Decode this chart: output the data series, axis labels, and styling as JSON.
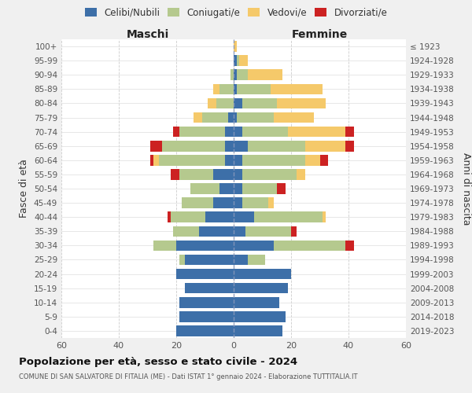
{
  "age_groups": [
    "0-4",
    "5-9",
    "10-14",
    "15-19",
    "20-24",
    "25-29",
    "30-34",
    "35-39",
    "40-44",
    "45-49",
    "50-54",
    "55-59",
    "60-64",
    "65-69",
    "70-74",
    "75-79",
    "80-84",
    "85-89",
    "90-94",
    "95-99",
    "100+"
  ],
  "birth_years": [
    "2019-2023",
    "2014-2018",
    "2009-2013",
    "2004-2008",
    "1999-2003",
    "1994-1998",
    "1989-1993",
    "1984-1988",
    "1979-1983",
    "1974-1978",
    "1969-1973",
    "1964-1968",
    "1959-1963",
    "1954-1958",
    "1949-1953",
    "1944-1948",
    "1939-1943",
    "1934-1938",
    "1929-1933",
    "1924-1928",
    "≤ 1923"
  ],
  "colors": {
    "celibi": "#3d6fa8",
    "coniugati": "#b5c98e",
    "vedovi": "#f5c96a",
    "divorziati": "#cc2222"
  },
  "maschi": {
    "celibi": [
      20,
      19,
      19,
      17,
      20,
      17,
      20,
      12,
      10,
      7,
      5,
      7,
      3,
      3,
      3,
      2,
      0,
      0,
      0,
      0,
      0
    ],
    "coniugati": [
      0,
      0,
      0,
      0,
      0,
      2,
      8,
      9,
      12,
      11,
      10,
      12,
      23,
      22,
      16,
      9,
      6,
      5,
      1,
      0,
      0
    ],
    "vedovi": [
      0,
      0,
      0,
      0,
      0,
      0,
      0,
      0,
      0,
      0,
      0,
      0,
      2,
      0,
      0,
      3,
      3,
      2,
      0,
      0,
      0
    ],
    "divorziati": [
      0,
      0,
      0,
      0,
      0,
      0,
      0,
      0,
      1,
      0,
      0,
      3,
      1,
      4,
      2,
      0,
      0,
      0,
      0,
      0,
      0
    ]
  },
  "femmine": {
    "celibi": [
      17,
      18,
      16,
      19,
      20,
      5,
      14,
      4,
      7,
      3,
      3,
      3,
      3,
      5,
      3,
      1,
      3,
      1,
      1,
      1,
      0
    ],
    "coniugati": [
      0,
      0,
      0,
      0,
      0,
      6,
      25,
      16,
      24,
      9,
      12,
      19,
      22,
      20,
      16,
      13,
      12,
      12,
      4,
      1,
      0
    ],
    "vedovi": [
      0,
      0,
      0,
      0,
      0,
      0,
      0,
      0,
      1,
      2,
      0,
      3,
      5,
      14,
      20,
      14,
      17,
      18,
      12,
      3,
      1
    ],
    "divorziati": [
      0,
      0,
      0,
      0,
      0,
      0,
      3,
      2,
      0,
      0,
      3,
      0,
      3,
      3,
      3,
      0,
      0,
      0,
      0,
      0,
      0
    ]
  },
  "xlim": 60,
  "title": "Popolazione per età, sesso e stato civile - 2024",
  "subtitle": "COMUNE DI SAN SALVATORE DI FITALIA (ME) - Dati ISTAT 1° gennaio 2024 - Elaborazione TUTTITALIA.IT",
  "ylabel_left": "Fasce di età",
  "ylabel_right": "Anni di nascita",
  "xlabel_left": "Maschi",
  "xlabel_right": "Femmine",
  "legend_labels": [
    "Celibi/Nubili",
    "Coniugati/e",
    "Vedovi/e",
    "Divorziati/e"
  ],
  "bg_color": "#f0f0f0",
  "plot_bg": "#ffffff"
}
